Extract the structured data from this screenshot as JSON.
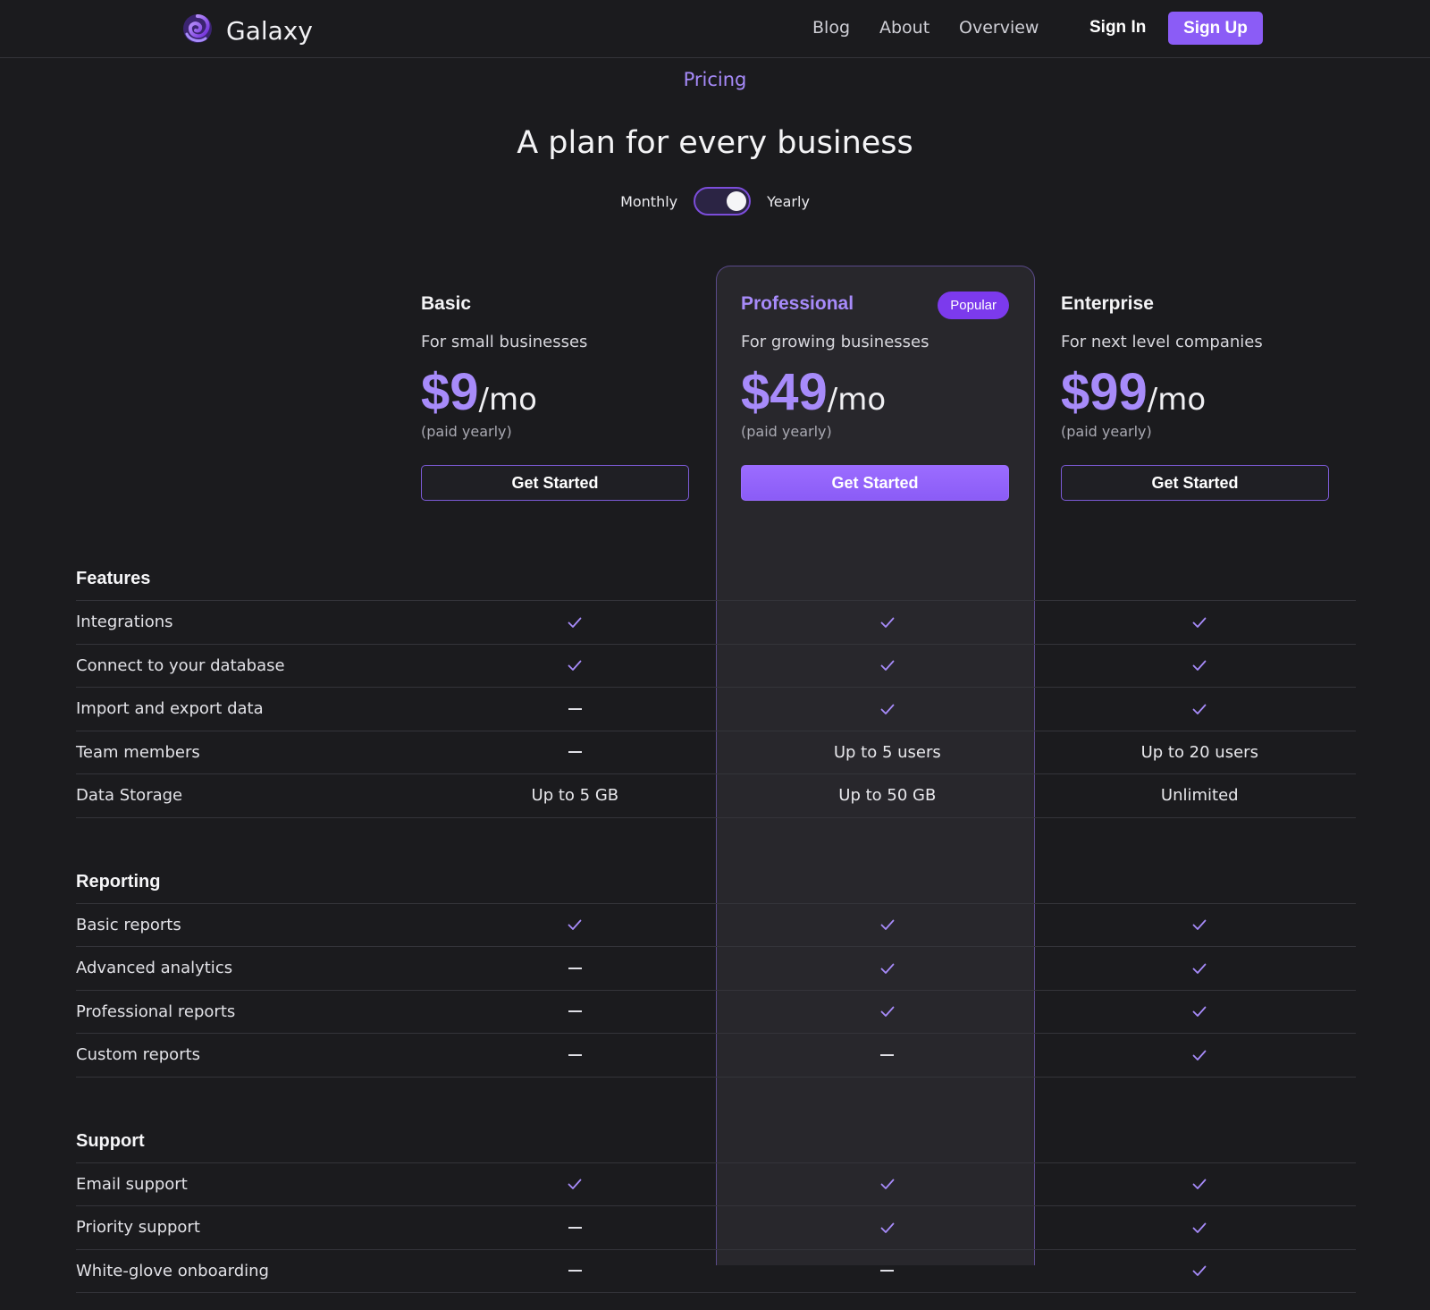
{
  "nav": {
    "brand": "Galaxy",
    "links": [
      "Blog",
      "About",
      "Overview"
    ],
    "sign_in": "Sign In",
    "sign_up": "Sign Up"
  },
  "header": {
    "eyebrow": "Pricing",
    "title": "A plan for every business",
    "billing_toggle": {
      "left_label": "Monthly",
      "right_label": "Yearly",
      "selected": "Yearly"
    }
  },
  "plans": [
    {
      "name": "Basic",
      "description": "For small businesses",
      "price": "$9",
      "unit": "/mo",
      "billing": "(paid yearly)",
      "cta": "Get Started"
    },
    {
      "name": "Professional",
      "badge": "Popular",
      "description": "For growing businesses",
      "price": "$49",
      "unit": "/mo",
      "billing": "(paid yearly)",
      "cta": "Get Started"
    },
    {
      "name": "Enterprise",
      "description": "For next level companies",
      "price": "$99",
      "unit": "/mo",
      "billing": "(paid yearly)",
      "cta": "Get Started"
    }
  ],
  "sections": [
    {
      "title": "Features",
      "rows": [
        {
          "label": "Integrations",
          "values": [
            "check",
            "check",
            "check"
          ]
        },
        {
          "label": "Connect to your database",
          "values": [
            "check",
            "check",
            "check"
          ]
        },
        {
          "label": "Import and export data",
          "values": [
            "dash",
            "check",
            "check"
          ]
        },
        {
          "label": "Team members",
          "values": [
            "dash",
            "Up to 5 users",
            "Up to 20 users"
          ]
        },
        {
          "label": "Data Storage",
          "values": [
            "Up to 5 GB",
            "Up to 50 GB",
            "Unlimited"
          ]
        }
      ]
    },
    {
      "title": "Reporting",
      "rows": [
        {
          "label": "Basic reports",
          "values": [
            "check",
            "check",
            "check"
          ]
        },
        {
          "label": "Advanced analytics",
          "values": [
            "dash",
            "check",
            "check"
          ]
        },
        {
          "label": "Professional reports",
          "values": [
            "dash",
            "check",
            "check"
          ]
        },
        {
          "label": "Custom reports",
          "values": [
            "dash",
            "dash",
            "check"
          ]
        }
      ]
    },
    {
      "title": "Support",
      "rows": [
        {
          "label": "Email support",
          "values": [
            "check",
            "check",
            "check"
          ]
        },
        {
          "label": "Priority support",
          "values": [
            "dash",
            "check",
            "check"
          ]
        },
        {
          "label": "White-glove onboarding",
          "values": [
            "dash",
            "dash",
            "check"
          ]
        }
      ]
    }
  ],
  "colors": {
    "accent": "#8b5cf6",
    "accent_text": "#a78bfa",
    "background": "#1b1b1e",
    "panel": "#28272c"
  },
  "icons": {
    "check": "check-icon",
    "dash": "dash-icon",
    "logo": "galaxy-swirl-icon"
  }
}
